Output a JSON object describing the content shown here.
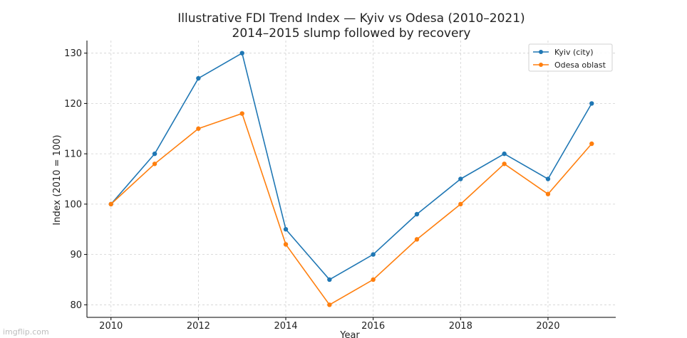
{
  "watermark": "imgflip.com",
  "chart_data": {
    "type": "line",
    "title": "Illustrative FDI Trend Index — Kyiv vs Odesa (2010–2021)",
    "subtitle": "2014–2015 slump followed by recovery",
    "xlabel": "Year",
    "ylabel": "Index (2010 = 100)",
    "x": [
      2010,
      2011,
      2012,
      2013,
      2014,
      2015,
      2016,
      2017,
      2018,
      2019,
      2020,
      2021
    ],
    "xlim": [
      2009.45,
      2021.55
    ],
    "ylim": [
      77.5,
      132.5
    ],
    "x_ticks": [
      2010,
      2012,
      2014,
      2016,
      2018,
      2020
    ],
    "y_ticks": [
      80,
      90,
      100,
      110,
      120,
      130
    ],
    "grid": true,
    "legend_position": "top-right",
    "series": [
      {
        "name": "Kyiv (city)",
        "color": "#1f77b4",
        "values": [
          100,
          110,
          125,
          130,
          95,
          85,
          90,
          98,
          105,
          110,
          105,
          120
        ]
      },
      {
        "name": "Odesa oblast",
        "color": "#ff7f0e",
        "values": [
          100,
          108,
          115,
          118,
          92,
          80,
          85,
          93,
          100,
          108,
          102,
          112
        ]
      }
    ]
  }
}
